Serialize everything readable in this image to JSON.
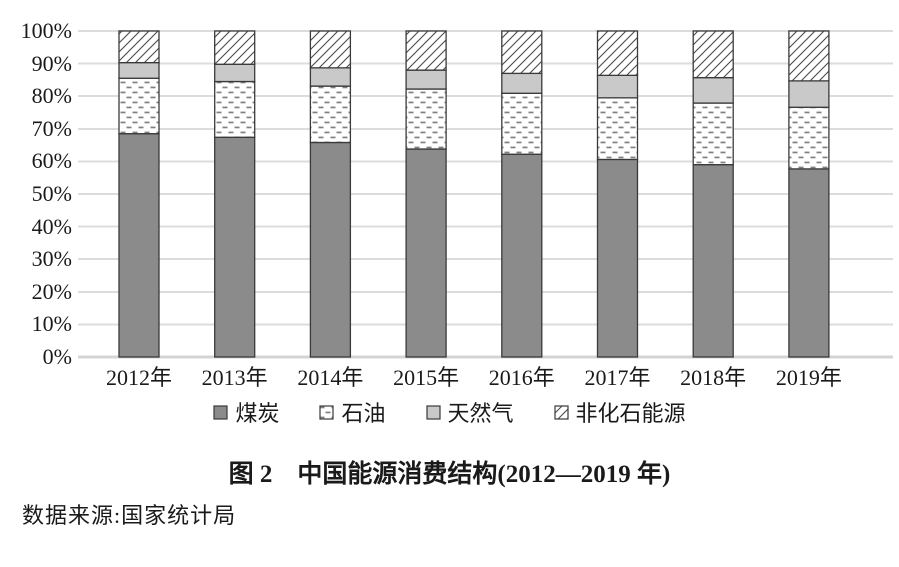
{
  "figure": {
    "caption": "图 2　中国能源消费结构(2012—2019 年)",
    "source": "数据来源:国家统计局"
  },
  "chart_data": {
    "type": "bar",
    "variant": "stacked-100-percent",
    "title": "中国能源消费结构(2012—2019 年)",
    "categories": [
      "2012年",
      "2013年",
      "2014年",
      "2015年",
      "2016年",
      "2017年",
      "2018年",
      "2019年"
    ],
    "series": [
      {
        "name": "煤炭",
        "style": "solid-dark",
        "values": [
          68.5,
          67.4,
          65.8,
          63.8,
          62.2,
          60.6,
          59.0,
          57.7
        ]
      },
      {
        "name": "石油",
        "style": "dash-pattern",
        "values": [
          17.0,
          17.1,
          17.3,
          18.4,
          18.7,
          18.9,
          18.9,
          18.9
        ]
      },
      {
        "name": "天然气",
        "style": "solid-light",
        "values": [
          4.8,
          5.3,
          5.6,
          5.8,
          6.1,
          6.9,
          7.8,
          8.1
        ]
      },
      {
        "name": "非化石能源",
        "style": "diagonal-hatch",
        "values": [
          9.7,
          10.2,
          11.3,
          12.0,
          13.0,
          13.6,
          14.3,
          15.3
        ]
      }
    ],
    "unit": "%",
    "ylim": [
      0,
      100
    ],
    "y_ticks": [
      "0%",
      "10%",
      "20%",
      "30%",
      "40%",
      "50%",
      "60%",
      "70%",
      "80%",
      "90%",
      "100%"
    ],
    "grid": true,
    "legend_position": "bottom",
    "colors": {
      "coal": "#8b8b8b",
      "gas": "#c9c9c9",
      "border": "#3a3a3a",
      "grid": "#dcdcdc",
      "axis": "#d4d4d4",
      "pattern_dash": "#808080",
      "pattern_hatch": "#4a4a4a"
    }
  }
}
